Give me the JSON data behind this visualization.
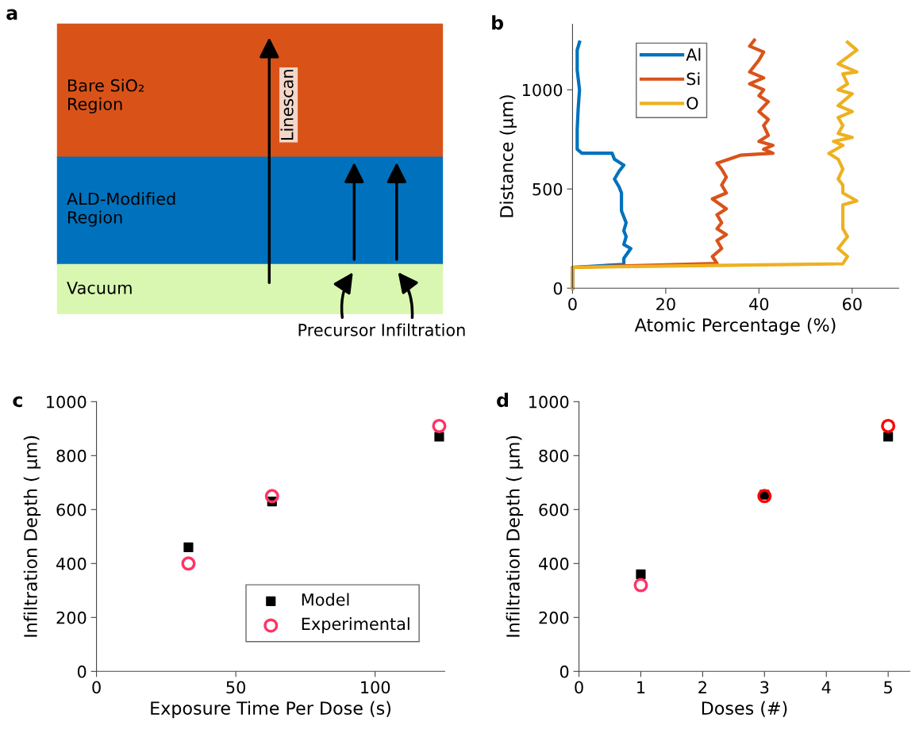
{
  "chart_data": [
    {
      "type": "other",
      "title": "a",
      "annotations": [
        "Bare SiO₂\nRegion",
        "ALD-Modified\nRegion",
        "Vacuum",
        "Linescan",
        "Precursor Infiltration"
      ]
    },
    {
      "type": "line",
      "title": "b",
      "xlabel": "Atomic Percentage (%)",
      "ylabel": "Distance (µm)",
      "xlim": [
        0,
        70
      ],
      "ylim": [
        0,
        1330
      ],
      "xticks": [
        0,
        20,
        40,
        60
      ],
      "yticks": [
        0,
        500,
        1000
      ],
      "legend": "top left",
      "grid": false,
      "series": [
        {
          "name": "Al",
          "color": "#0072bd",
          "x": [
            0,
            0,
            11,
            11,
            12.5,
            11,
            11.5,
            11,
            11.5,
            10.5,
            10.5,
            10.5,
            10,
            9,
            10,
            11,
            9,
            8.5,
            2,
            1,
            1,
            1.2,
            1.5,
            1,
            1,
            1.5
          ],
          "values": [
            0,
            105,
            120,
            150,
            200,
            220,
            260,
            290,
            330,
            390,
            440,
            480,
            510,
            550,
            590,
            620,
            650,
            680,
            680,
            700,
            800,
            900,
            1000,
            1100,
            1200,
            1240
          ]
        },
        {
          "name": "Si",
          "color": "#d95319",
          "x": [
            0,
            0,
            31,
            30,
            32,
            31,
            33,
            31,
            32,
            31,
            33,
            30,
            33,
            32,
            33,
            32,
            31,
            36,
            43,
            41,
            43,
            40,
            42,
            41,
            42,
            40,
            42,
            40,
            41,
            38,
            41,
            38,
            40,
            41,
            38,
            39
          ],
          "values": [
            0,
            105,
            125,
            160,
            200,
            240,
            270,
            300,
            330,
            370,
            400,
            450,
            480,
            520,
            560,
            600,
            630,
            670,
            680,
            700,
            720,
            740,
            770,
            820,
            850,
            890,
            940,
            970,
            1000,
            1030,
            1060,
            1090,
            1150,
            1190,
            1220,
            1250
          ]
        },
        {
          "name": "O",
          "color": "#edb120",
          "x": [
            0,
            0,
            58,
            59,
            57,
            59,
            58,
            58,
            58,
            61,
            58,
            58,
            57,
            58,
            57,
            55,
            58,
            56,
            60,
            57,
            58,
            57,
            60,
            57,
            60,
            57,
            59,
            58,
            61,
            57,
            61,
            59
          ],
          "values": [
            0,
            105,
            123,
            160,
            200,
            260,
            300,
            380,
            420,
            440,
            480,
            520,
            550,
            600,
            650,
            680,
            720,
            740,
            760,
            780,
            820,
            860,
            890,
            920,
            980,
            1000,
            1030,
            1080,
            1090,
            1130,
            1200,
            1240
          ]
        }
      ]
    },
    {
      "type": "scatter",
      "title": "c",
      "xlabel": "Exposure Time Per Dose (s)",
      "ylabel": "Infiltration Depth ( μm)",
      "xlim": [
        0,
        125
      ],
      "ylim": [
        0,
        1000
      ],
      "xticks": [
        0,
        50,
        100
      ],
      "yticks": [
        0,
        200,
        400,
        600,
        800,
        1000
      ],
      "legend": "bottom right",
      "grid": false,
      "x": [
        33,
        63,
        123
      ],
      "series": [
        {
          "name": "Model",
          "color": "#000000",
          "marker": "square",
          "values": [
            460,
            630,
            870
          ]
        },
        {
          "name": "Experimental",
          "color": "#ff3366",
          "marker": "circle",
          "values": [
            400,
            650,
            910
          ]
        }
      ]
    },
    {
      "type": "scatter",
      "title": "d",
      "xlabel": "Doses (#)",
      "ylabel": "Infiltration Depth ( μm)",
      "xlim": [
        0,
        5.35
      ],
      "ylim": [
        0,
        1000
      ],
      "xticks": [
        0,
        1,
        2,
        3,
        4,
        5
      ],
      "yticks": [
        0,
        200,
        400,
        600,
        800,
        1000
      ],
      "grid": false,
      "x": [
        1,
        3,
        5
      ],
      "series": [
        {
          "color": "#000000",
          "marker": "square",
          "values": [
            360,
            655,
            870
          ]
        },
        {
          "colors": [
            "#ff3366",
            "#ff0000",
            "#ff0000"
          ],
          "marker": "circle",
          "values": [
            320,
            650,
            910
          ]
        }
      ]
    }
  ]
}
